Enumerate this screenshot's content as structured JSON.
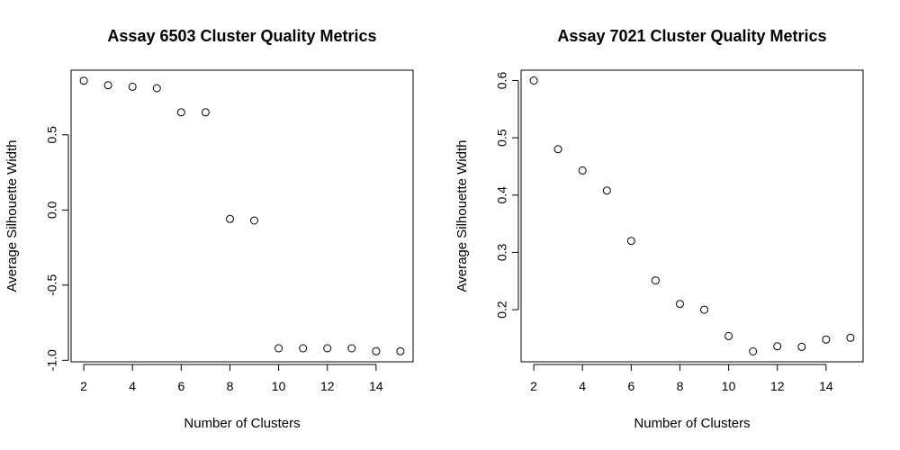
{
  "chart_data": [
    {
      "type": "scatter",
      "title": "Assay 6503 Cluster Quality Metrics",
      "xlabel": "Number of Clusters",
      "ylabel": "Average Silhouette Width",
      "x": [
        2,
        3,
        4,
        5,
        6,
        7,
        8,
        9,
        10,
        11,
        12,
        13,
        14,
        15
      ],
      "y": [
        0.86,
        0.83,
        0.82,
        0.81,
        0.65,
        0.65,
        -0.06,
        -0.07,
        -0.92,
        -0.92,
        -0.92,
        -0.92,
        -0.94,
        -0.94
      ],
      "xlim": [
        1.48,
        15.52
      ],
      "ylim": [
        -1.01,
        0.93
      ],
      "xticks": [
        2,
        4,
        6,
        8,
        10,
        12,
        14
      ],
      "xtick_labels": [
        "2",
        "4",
        "6",
        "8",
        "10",
        "12",
        "14"
      ],
      "yticks": [
        -1.0,
        -0.5,
        0.0,
        0.5
      ],
      "ytick_labels": [
        "-1.0",
        "-0.5",
        "0.0",
        "0.5"
      ],
      "marker": "open-circle",
      "grid": false,
      "legend": "none"
    },
    {
      "type": "scatter",
      "title": "Assay 7021 Cluster Quality Metrics",
      "xlabel": "Number of Clusters",
      "ylabel": "Average Silhouette Width",
      "x": [
        2,
        3,
        4,
        5,
        6,
        7,
        8,
        9,
        10,
        11,
        12,
        13,
        14,
        15
      ],
      "y": [
        0.6,
        0.48,
        0.443,
        0.408,
        0.32,
        0.251,
        0.21,
        0.2,
        0.154,
        0.127,
        0.136,
        0.135,
        0.148,
        0.151
      ],
      "xlim": [
        1.48,
        15.52
      ],
      "ylim": [
        0.109,
        0.618
      ],
      "xticks": [
        2,
        4,
        6,
        8,
        10,
        12,
        14
      ],
      "xtick_labels": [
        "2",
        "4",
        "6",
        "8",
        "10",
        "12",
        "14"
      ],
      "yticks": [
        0.2,
        0.3,
        0.4,
        0.5,
        0.6
      ],
      "ytick_labels": [
        "0.2",
        "0.3",
        "0.4",
        "0.5",
        "0.6"
      ],
      "marker": "open-circle",
      "grid": false,
      "legend": "none"
    }
  ]
}
